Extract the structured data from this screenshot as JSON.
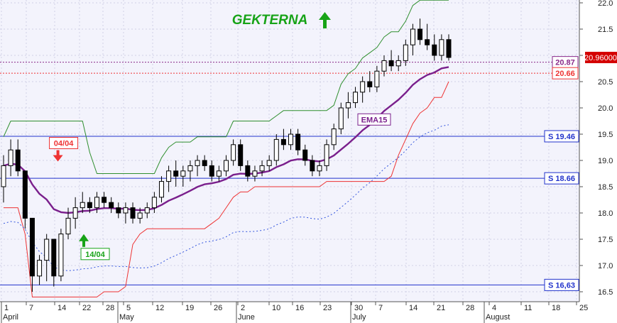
{
  "chart_data": {
    "type": "candlestick",
    "title": "GEKTERNA",
    "y_axis": {
      "min": 16.4,
      "max": 22.0,
      "ticks": [
        "22.0",
        "21.5",
        "21.0",
        "20.5",
        "20.0",
        "19.5",
        "19.0",
        "18.5",
        "18.0",
        "17.5",
        "17.0",
        "16.5"
      ],
      "side": "right"
    },
    "x_ticks": [
      "1",
      "7",
      "14",
      "22",
      "28",
      "5",
      "12",
      "19",
      "26",
      "2",
      "10",
      "16",
      "23",
      "30",
      "7",
      "14",
      "21",
      "28",
      "4",
      "11",
      "18",
      "25"
    ],
    "month_labels": [
      "April",
      "May",
      "June",
      "July",
      "August"
    ],
    "price_label": "20.96000",
    "levels": [
      {
        "label": "S 19.46",
        "value": 19.46
      },
      {
        "label": "S 18.66",
        "value": 18.66
      },
      {
        "label": "S 16,63",
        "value": 16.63
      }
    ],
    "ref_levels": [
      {
        "label": "20.87",
        "value": 20.87
      },
      {
        "label": "20.66",
        "value": 20.66
      }
    ],
    "annotations": [
      {
        "text": "04/04",
        "signal": "sell"
      },
      {
        "text": "14/04",
        "signal": "buy"
      },
      {
        "text": "EMA15"
      }
    ],
    "candles": [
      [
        18.5,
        19.1,
        18.2,
        18.9
      ],
      [
        18.9,
        19.4,
        18.7,
        19.2
      ],
      [
        19.2,
        19.4,
        18.7,
        18.8
      ],
      [
        18.8,
        18.8,
        17.7,
        17.9
      ],
      [
        17.9,
        17.9,
        16.5,
        16.8
      ],
      [
        16.8,
        17.2,
        16.63,
        17.1
      ],
      [
        17.1,
        17.6,
        16.7,
        17.5
      ],
      [
        17.5,
        17.5,
        16.6,
        16.8
      ],
      [
        16.8,
        17.7,
        16.7,
        17.6
      ],
      [
        17.6,
        18.1,
        17.5,
        17.9
      ],
      [
        17.9,
        18.3,
        17.7,
        18.1
      ],
      [
        18.1,
        18.4,
        18.0,
        18.2
      ],
      [
        18.2,
        18.3,
        18.0,
        18.1
      ],
      [
        18.1,
        18.4,
        18.0,
        18.3
      ],
      [
        18.3,
        18.4,
        18.1,
        18.2
      ],
      [
        18.2,
        18.3,
        18.0,
        18.1
      ],
      [
        18.1,
        18.2,
        17.9,
        18.0
      ],
      [
        18.0,
        18.2,
        17.8,
        18.1
      ],
      [
        18.1,
        18.2,
        17.8,
        17.9
      ],
      [
        17.9,
        18.1,
        17.8,
        18.0
      ],
      [
        18.0,
        18.2,
        17.9,
        18.1
      ],
      [
        18.1,
        18.4,
        18.0,
        18.3
      ],
      [
        18.3,
        18.7,
        18.2,
        18.6
      ],
      [
        18.6,
        18.9,
        18.4,
        18.8
      ],
      [
        18.8,
        19.0,
        18.5,
        18.7
      ],
      [
        18.7,
        18.9,
        18.5,
        18.8
      ],
      [
        18.8,
        19.0,
        18.6,
        18.9
      ],
      [
        18.9,
        19.1,
        18.7,
        19.0
      ],
      [
        19.0,
        19.1,
        18.8,
        18.9
      ],
      [
        18.9,
        19.0,
        18.6,
        18.7
      ],
      [
        18.7,
        18.9,
        18.6,
        18.8
      ],
      [
        18.8,
        19.1,
        18.7,
        19.0
      ],
      [
        19.0,
        19.4,
        18.9,
        19.3
      ],
      [
        19.3,
        19.4,
        18.8,
        18.9
      ],
      [
        18.9,
        19.0,
        18.6,
        18.7
      ],
      [
        18.7,
        18.9,
        18.6,
        18.8
      ],
      [
        18.8,
        19.0,
        18.7,
        18.9
      ],
      [
        18.9,
        19.1,
        18.8,
        19.0
      ],
      [
        19.0,
        19.5,
        18.9,
        19.4
      ],
      [
        19.4,
        19.6,
        19.2,
        19.3
      ],
      [
        19.3,
        19.6,
        19.2,
        19.5
      ],
      [
        19.5,
        19.6,
        19.1,
        19.2
      ],
      [
        19.2,
        19.3,
        18.9,
        19.0
      ],
      [
        19.0,
        19.1,
        18.7,
        18.8
      ],
      [
        18.8,
        19.0,
        18.7,
        18.9
      ],
      [
        18.9,
        19.4,
        18.8,
        19.3
      ],
      [
        19.3,
        19.7,
        19.2,
        19.6
      ],
      [
        19.6,
        20.1,
        19.5,
        20.0
      ],
      [
        20.0,
        20.3,
        19.8,
        20.1
      ],
      [
        20.1,
        20.4,
        20.0,
        20.3
      ],
      [
        20.3,
        20.6,
        20.1,
        20.5
      ],
      [
        20.5,
        20.7,
        20.3,
        20.4
      ],
      [
        20.4,
        20.8,
        20.3,
        20.7
      ],
      [
        20.7,
        21.0,
        20.6,
        20.9
      ],
      [
        20.9,
        21.1,
        20.7,
        20.8
      ],
      [
        20.8,
        21.0,
        20.7,
        20.9
      ],
      [
        20.9,
        21.3,
        20.8,
        21.2
      ],
      [
        21.2,
        21.6,
        21.0,
        21.5
      ],
      [
        21.5,
        21.7,
        21.2,
        21.3
      ],
      [
        21.3,
        21.6,
        21.1,
        21.2
      ],
      [
        21.2,
        21.4,
        20.9,
        21.0
      ],
      [
        21.0,
        21.4,
        20.9,
        21.3
      ],
      [
        21.3,
        21.4,
        20.9,
        20.96
      ]
    ]
  }
}
